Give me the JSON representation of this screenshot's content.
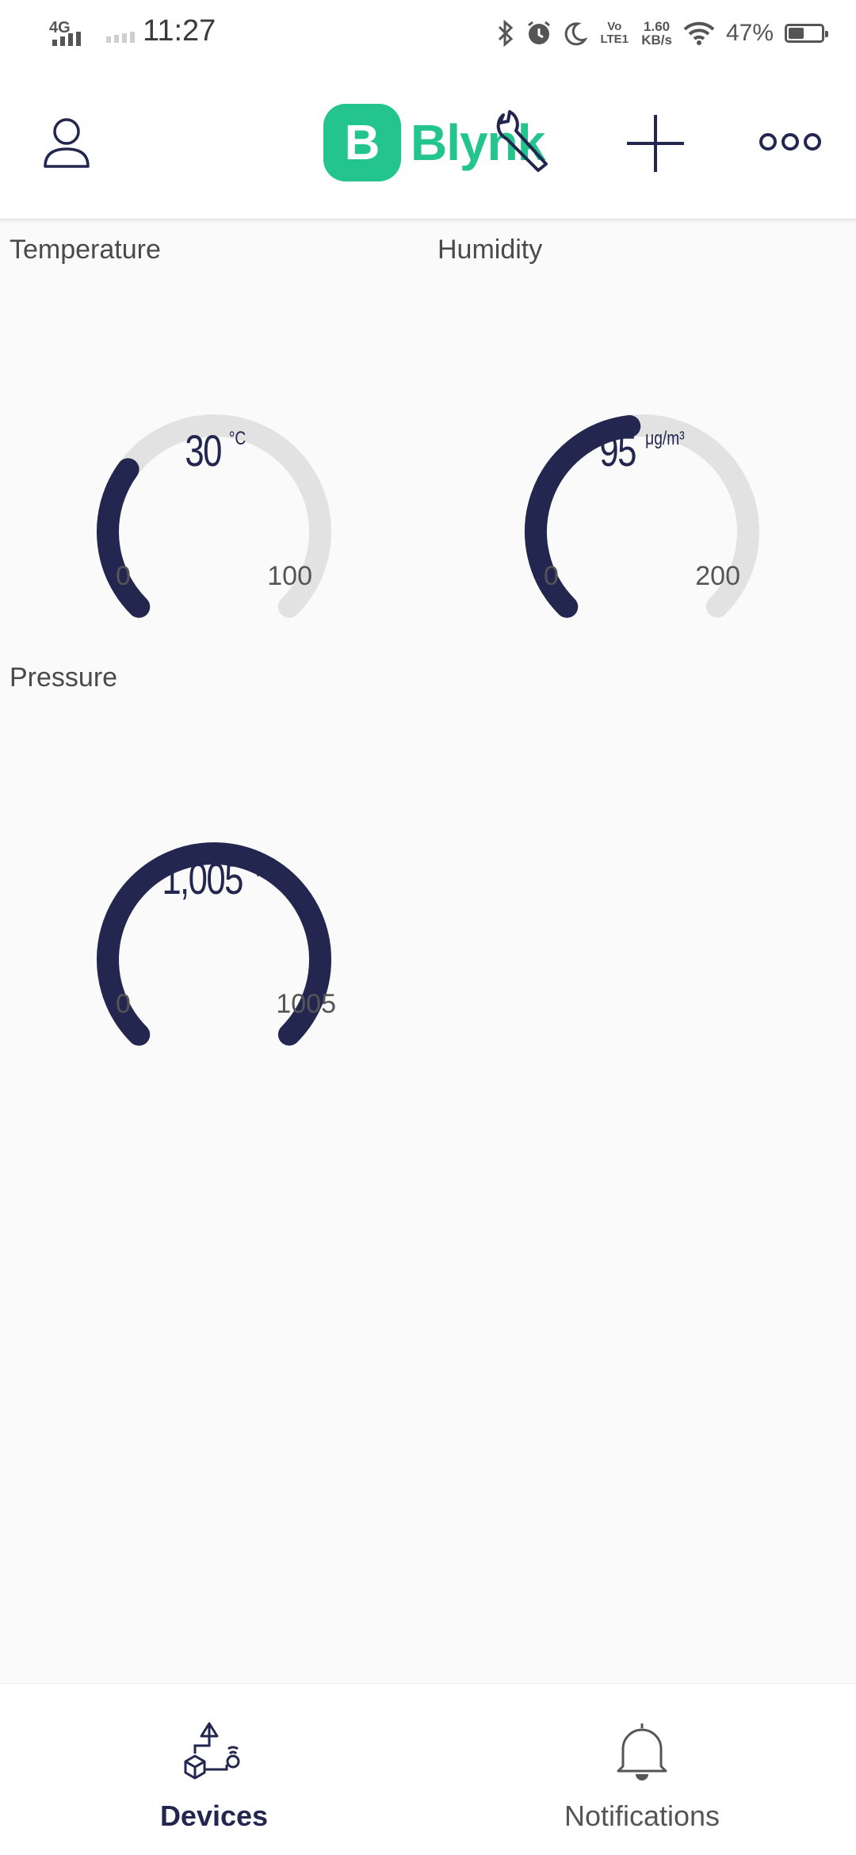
{
  "status_bar": {
    "network": "4G",
    "time": "11:27",
    "volte": "Vo LTE1",
    "speed_value": "1.60",
    "speed_unit": "KB/s",
    "battery": "47%",
    "battery_level": 0.47,
    "icons": [
      "bluetooth-icon",
      "alarm-icon",
      "moon-icon",
      "wifi-icon",
      "battery-icon"
    ]
  },
  "header": {
    "logo_letter": "B",
    "logo_text": "Blynk",
    "icons": [
      "user-icon",
      "wrench-icon",
      "plus-icon",
      "more-icon"
    ],
    "brand_color": "#23c48e"
  },
  "gauges": [
    {
      "title": "Temperature",
      "value": "30",
      "unit": "°C",
      "min": "0",
      "max": "100",
      "fraction": 0.3
    },
    {
      "title": "Humidity",
      "value": "95",
      "unit": "μg/m³",
      "min": "0",
      "max": "200",
      "fraction": 0.475
    },
    {
      "title": "Pressure",
      "value": "1,005",
      "unit": "psi",
      "min": "0",
      "max": "1005",
      "fraction": 1.0
    }
  ],
  "gauge_colors": {
    "fill": "#23264f",
    "track": "#e2e2e2"
  },
  "bottom_nav": {
    "devices": "Devices",
    "notifications": "Notifications"
  }
}
